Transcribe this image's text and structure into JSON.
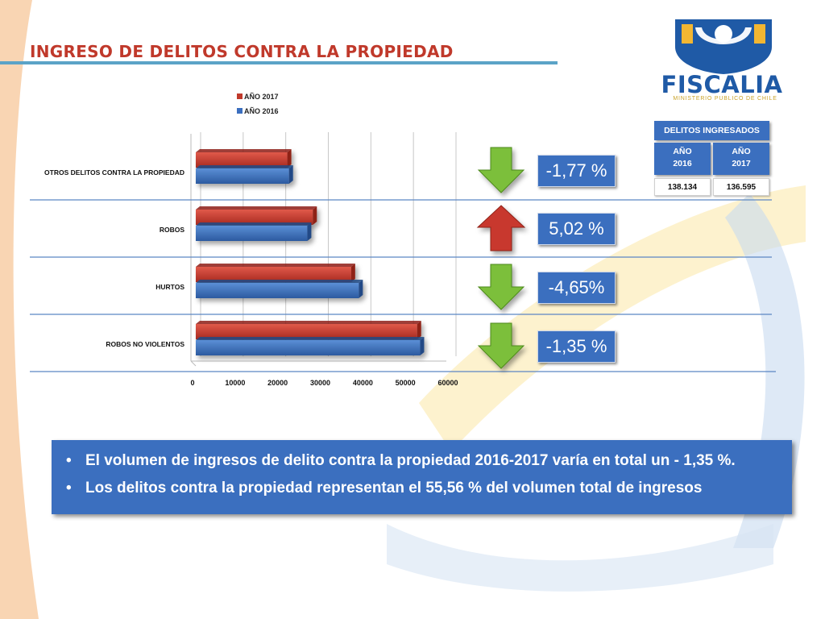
{
  "title": "INGRESO DE DELITOS CONTRA LA PROPIEDAD",
  "logo": {
    "word": "FISCALIA",
    "sub": "MINISTERIO PUBLICO DE CHILE"
  },
  "colors": {
    "red_series": "#c0392b",
    "blue_series": "#3b6fbf",
    "arrow_down": "#7cbf3a",
    "arrow_up": "#c8382f",
    "title": "#c0392b",
    "panel": "#3b6fbf"
  },
  "chart_data": {
    "type": "bar",
    "orientation": "horizontal",
    "categories": [
      "OTROS DELITOS CONTRA LA PROPIEDAD",
      "ROBOS",
      "HURTOS",
      "ROBOS NO VIOLENTOS"
    ],
    "series": [
      {
        "name": "AÑO 2017",
        "values": [
          21500,
          27500,
          36500,
          52000
        ]
      },
      {
        "name": "AÑO 2016",
        "values": [
          21900,
          26200,
          38300,
          52700
        ]
      }
    ],
    "xlim": [
      0,
      60000
    ],
    "ticks": [
      "0",
      "10000",
      "20000",
      "30000",
      "40000",
      "50000",
      "60000"
    ],
    "legend_position": "top",
    "grid": true
  },
  "changes": [
    {
      "label": "-1,77 %",
      "direction": "down"
    },
    {
      "label": "5,02 %",
      "direction": "up"
    },
    {
      "label": "-4,65%",
      "direction": "down"
    },
    {
      "label": "-1,35 %",
      "direction": "down"
    }
  ],
  "info_table": {
    "header": "DELITOS INGRESADOS",
    "year1": "AÑO 2016",
    "year2": "AÑO 2017",
    "value1": "138.134",
    "value2": "136.595"
  },
  "bullets": [
    "El volumen de ingresos de delito contra la propiedad 2016-2017 varía en total un - 1,35 %.",
    "Los delitos contra la propiedad representan el 55,56 % del volumen total de ingresos"
  ]
}
